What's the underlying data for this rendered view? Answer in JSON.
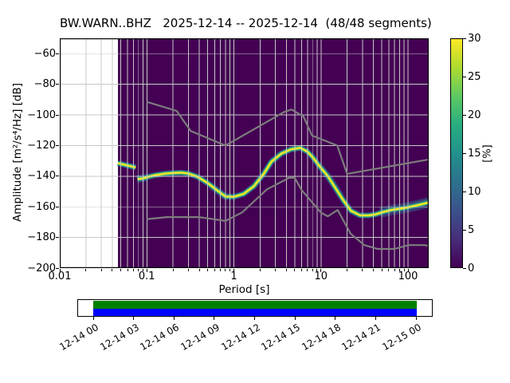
{
  "title": "BW.WARN..BHZ   2025-12-14 -- 2025-12-14  (48/48 segments)",
  "axes": {
    "xlabel": "Period [s]",
    "ylabel": "Amplitude [m²/s⁴/Hz] [dB]",
    "x_tick_labels": [
      "0.01",
      "0.1",
      "1",
      "10",
      "100"
    ],
    "y_tick_labels": [
      "−60",
      "−80",
      "−100",
      "−120",
      "−140",
      "−160",
      "−180",
      "−200"
    ]
  },
  "colorbar": {
    "label": "[%]",
    "tick_labels": [
      "0",
      "5",
      "10",
      "15",
      "20",
      "25",
      "30"
    ],
    "range": [
      0,
      30
    ],
    "colormap": "viridis",
    "gradient_stops": [
      "#440154",
      "#472d7b",
      "#3b528b",
      "#2c728e",
      "#21918c",
      "#28ae80",
      "#5ec962",
      "#addc30",
      "#fde725"
    ]
  },
  "timeline": {
    "tick_labels": [
      "12-14 00",
      "12-14 03",
      "12-14 06",
      "12-14 09",
      "12-14 12",
      "12-14 15",
      "12-14 18",
      "12-14 21",
      "12-15 00"
    ],
    "coverage": {
      "start": "12-14 00",
      "end": "12-15 00",
      "fraction": 1.0
    },
    "colors": {
      "top": "#008000",
      "bottom": "#0000ff"
    }
  },
  "chart_data": {
    "type": "heatmap",
    "subtype": "ppsd-probabilistic-power-spectral-density",
    "title": "BW.WARN..BHZ   2025-12-14 -- 2025-12-14  (48/48 segments)",
    "xlabel": "Period [s]",
    "ylabel": "Amplitude [m²/s⁴/Hz] [dB]",
    "segments_used": "48/48",
    "axes": {
      "x": {
        "scale": "log",
        "range": [
          0.01,
          173
        ],
        "major_ticks": [
          0.01,
          0.1,
          1,
          10,
          100
        ]
      },
      "y": {
        "range": [
          -200,
          -50
        ],
        "major_ticks": [
          -60,
          -80,
          -100,
          -120,
          -140,
          -160,
          -180,
          -200
        ],
        "grid_ticks": [
          -60,
          -80,
          -100,
          -120,
          -140,
          -160,
          -180
        ]
      }
    },
    "colorbar": {
      "label": "[%]",
      "range": [
        0,
        30
      ],
      "colormap": "viridis"
    },
    "data_period_range": [
      0.0466,
      173
    ],
    "colors": {
      "background": "#440154",
      "grid": "#c8c8c8",
      "noise_models": "#7d7d7d",
      "mode_line": "#fde725"
    },
    "psd": {
      "mode_segments": [
        [
          [
            0.0466,
            -131.5
          ],
          [
            0.055,
            -132.5
          ],
          [
            0.065,
            -133.5
          ],
          [
            0.0745,
            -134.3
          ]
        ],
        [
          [
            0.078,
            -141.9
          ],
          [
            0.09,
            -141.5
          ],
          [
            0.105,
            -140.3
          ],
          [
            0.125,
            -139.3
          ],
          [
            0.16,
            -138.4
          ],
          [
            0.2,
            -137.9
          ],
          [
            0.25,
            -137.7
          ],
          [
            0.3,
            -138.3
          ],
          [
            0.38,
            -140.3
          ],
          [
            0.5,
            -144.5
          ],
          [
            0.65,
            -149.5
          ],
          [
            0.8,
            -153.3
          ],
          [
            1.0,
            -153.5
          ],
          [
            1.3,
            -151.5
          ],
          [
            1.7,
            -146.5
          ],
          [
            2.2,
            -138.5
          ],
          [
            2.7,
            -130.5
          ],
          [
            3.5,
            -125.3
          ],
          [
            4.5,
            -122.5
          ],
          [
            5.8,
            -121.5
          ],
          [
            7.0,
            -124.0
          ],
          [
            8.0,
            -127.5
          ],
          [
            9.5,
            -133.0
          ],
          [
            12,
            -140.0
          ],
          [
            14.6,
            -147.5
          ],
          [
            18,
            -155.5
          ],
          [
            22,
            -162.5
          ],
          [
            28,
            -165.5
          ],
          [
            35,
            -165.6
          ],
          [
            42,
            -165.0
          ],
          [
            51,
            -163.5
          ],
          [
            65,
            -162.0
          ],
          [
            89,
            -160.9
          ],
          [
            125,
            -159.1
          ],
          [
            170,
            -157.3
          ]
        ]
      ],
      "layers": [
        {
          "c": "#3b528b",
          "w": 7.2,
          "o": 0.9
        },
        {
          "c": "#21918c",
          "w": 5.4,
          "o": 1
        },
        {
          "c": "#5ec962",
          "w": 3.6,
          "o": 1
        },
        {
          "c": "#fde725",
          "w": 2.2,
          "o": 1
        }
      ],
      "spread": [
        {
          "w": 13,
          "o": 0.5,
          "c": "#31688e",
          "pts": [
            [
              48,
              -163.8
            ],
            [
              65,
              -162
            ],
            [
              89,
              -160.9
            ],
            [
              125,
              -159.1
            ],
            [
              172,
              -157.2
            ]
          ]
        },
        {
          "w": 7,
          "o": 0.5,
          "c": "#35b779",
          "pts": [
            [
              80,
              -161.2
            ],
            [
              125,
              -158.9
            ],
            [
              172,
              -156.8
            ]
          ]
        },
        {
          "w": 10,
          "o": 0.5,
          "c": "#31688e",
          "pts": [
            [
              0.077,
              -141.9
            ],
            [
              0.1,
              -140.6
            ]
          ]
        },
        {
          "w": 9,
          "o": 0.4,
          "c": "#3b528b",
          "pts": [
            [
              0.55,
              -146.5
            ],
            [
              0.8,
              -153.3
            ],
            [
              1.05,
              -153.5
            ]
          ]
        },
        {
          "w": 9,
          "o": 0.35,
          "c": "#3b528b",
          "pts": [
            [
              10,
              -134.5
            ],
            [
              13,
              -142.5
            ],
            [
              17,
              -153
            ]
          ]
        }
      ]
    },
    "noise_models": {
      "nhnm": [
        [
          0.1,
          -91.5
        ],
        [
          0.22,
          -97.4
        ],
        [
          0.32,
          -110.5
        ],
        [
          0.8,
          -120.0
        ],
        [
          3.8,
          -98.0
        ],
        [
          4.6,
          -96.5
        ],
        [
          6.3,
          -101.0
        ],
        [
          7.9,
          -113.5
        ],
        [
          15.4,
          -120.0
        ],
        [
          20,
          -138.5
        ],
        [
          173,
          -129.1
        ]
      ],
      "nlnm": [
        [
          0.1,
          -168.0
        ],
        [
          0.17,
          -166.7
        ],
        [
          0.4,
          -166.7
        ],
        [
          0.8,
          -169.2
        ],
        [
          1.24,
          -163.7
        ],
        [
          2.4,
          -148.6
        ],
        [
          4.3,
          -141.1
        ],
        [
          5.0,
          -141.1
        ],
        [
          6.0,
          -149.0
        ],
        [
          10.0,
          -163.8
        ],
        [
          12.0,
          -166.2
        ],
        [
          15.6,
          -162.1
        ],
        [
          21.9,
          -177.5
        ],
        [
          31.6,
          -185.0
        ],
        [
          45.0,
          -187.5
        ],
        [
          70.0,
          -187.5
        ],
        [
          101.0,
          -185.0
        ],
        [
          154.0,
          -185.0
        ],
        [
          173,
          -185.4
        ]
      ]
    }
  }
}
